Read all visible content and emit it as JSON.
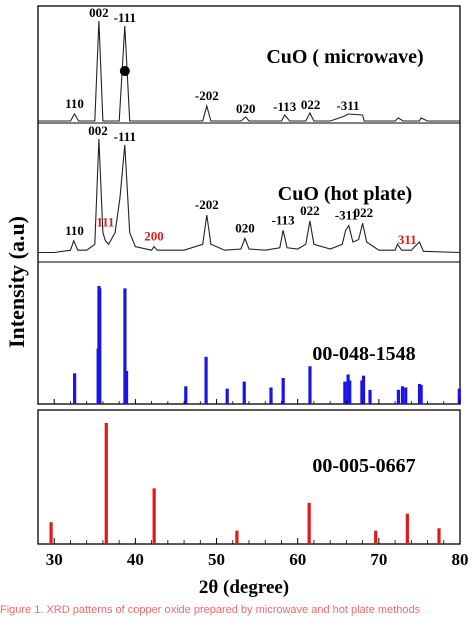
{
  "figure": {
    "ylabel": "Intensity (a.u)",
    "xlabel": "2θ (degree)",
    "caption": "Figure 1. XRD patterns of copper oxide prepared by microwave and hot plate methods"
  },
  "colors": {
    "trace": "#222222",
    "frame": "#000000",
    "blue": "#1a14e6",
    "red": "#e01a1a",
    "red_label": "#e01a1a"
  },
  "chart_data": [
    {
      "type": "line",
      "panel": "CuO microwave",
      "title": "CuO ( microwave)",
      "xlim": [
        28,
        80
      ],
      "x": [
        28,
        30,
        32,
        32.5,
        33,
        34,
        35,
        35.5,
        36,
        37,
        38,
        38.7,
        39.3,
        40,
        44,
        46,
        48.3,
        48.8,
        49.3,
        51,
        53,
        53.6,
        54,
        56,
        58,
        58.4,
        59,
        61,
        61.5,
        62,
        64,
        65.8,
        66.2,
        68,
        68.2,
        69,
        70,
        72,
        72.4,
        73,
        75,
        75.2,
        76,
        80
      ],
      "y": [
        0,
        0,
        0,
        0.07,
        0,
        0,
        0,
        1.0,
        0,
        0,
        0,
        0.95,
        0,
        0,
        0,
        0,
        0,
        0.15,
        0,
        0,
        0,
        0.04,
        0,
        0,
        0,
        0.06,
        0,
        0,
        0.08,
        0,
        0,
        0.05,
        0.07,
        0.06,
        0,
        0,
        0,
        0,
        0.03,
        0,
        0,
        0.03,
        0,
        0
      ],
      "peak_labels": [
        {
          "text": "110",
          "x": 32.5,
          "color": "#000000"
        },
        {
          "text": "002",
          "x": 35.5,
          "color": "#000000"
        },
        {
          "text": "-111",
          "x": 38.7,
          "color": "#000000"
        },
        {
          "text": "-202",
          "x": 48.8,
          "color": "#000000"
        },
        {
          "text": "020",
          "x": 53.6,
          "color": "#000000"
        },
        {
          "text": "-113",
          "x": 58.4,
          "color": "#000000"
        },
        {
          "text": "022",
          "x": 61.6,
          "color": "#000000"
        },
        {
          "text": "-311",
          "x": 66.2,
          "color": "#000000"
        }
      ],
      "marker_x": 38.7
    },
    {
      "type": "line",
      "panel": "CuO hot plate",
      "title": "CuO (hot plate)",
      "xlim": [
        28,
        80
      ],
      "x": [
        28,
        30,
        32,
        32.4,
        32.9,
        34,
        35,
        35.5,
        36,
        36.3,
        36.7,
        37.5,
        38.1,
        38.7,
        39.3,
        40,
        42,
        42.3,
        42.7,
        44,
        46,
        48.3,
        48.8,
        49.3,
        51,
        53,
        53.5,
        54,
        56,
        57.8,
        58.2,
        58.7,
        60,
        61,
        61.5,
        62,
        64,
        65.5,
        65.9,
        66.3,
        66.8,
        67.5,
        68,
        68.5,
        70,
        72,
        72.3,
        72.8,
        74,
        75,
        75.5,
        80
      ],
      "y": [
        0.03,
        0.03,
        0.05,
        0.13,
        0.05,
        0.05,
        0.1,
        1.0,
        0.2,
        0.13,
        0.1,
        0.2,
        0.5,
        0.95,
        0.2,
        0.08,
        0.05,
        0.08,
        0.05,
        0.05,
        0.05,
        0.1,
        0.35,
        0.1,
        0.05,
        0.06,
        0.15,
        0.06,
        0.05,
        0.07,
        0.22,
        0.07,
        0.06,
        0.1,
        0.3,
        0.1,
        0.06,
        0.1,
        0.22,
        0.26,
        0.12,
        0.14,
        0.28,
        0.12,
        0.05,
        0.05,
        0.1,
        0.05,
        0.05,
        0.12,
        0.04,
        0.03
      ],
      "peak_labels": [
        {
          "text": "110",
          "x": 32.5,
          "color": "#000000"
        },
        {
          "text": "111",
          "x": 36.3,
          "color": "#e01a1a"
        },
        {
          "text": "002",
          "x": 35.4,
          "color": "#000000"
        },
        {
          "text": "-111",
          "x": 38.7,
          "color": "#000000"
        },
        {
          "text": "200",
          "x": 42.3,
          "color": "#e01a1a"
        },
        {
          "text": "-202",
          "x": 48.8,
          "color": "#000000"
        },
        {
          "text": "020",
          "x": 53.5,
          "color": "#000000"
        },
        {
          "text": "-113",
          "x": 58.2,
          "color": "#000000"
        },
        {
          "text": "022",
          "x": 61.5,
          "color": "#000000"
        },
        {
          "text": "-311",
          "x": 66,
          "color": "#000000"
        },
        {
          "text": "022",
          "x": 68.1,
          "color": "#000000"
        },
        {
          "text": "311",
          "x": 73.5,
          "color": "#e01a1a"
        }
      ]
    },
    {
      "type": "bar",
      "panel": "Reference 00-048-1548",
      "title": "00-048-1548",
      "xlim": [
        28,
        80
      ],
      "ylim": [
        0,
        100
      ],
      "x": [
        32.5,
        35.4,
        35.5,
        35.6,
        38.7,
        38.9,
        46.2,
        48.7,
        51.3,
        53.4,
        56.7,
        58.2,
        61.5,
        65.8,
        66.2,
        66.4,
        67.9,
        68.1,
        68.9,
        72.4,
        72.9,
        73.3,
        75.0,
        75.2,
        79.9
      ],
      "y": [
        26,
        47,
        100,
        98,
        98,
        28,
        15,
        40,
        13,
        19,
        14,
        22,
        32,
        19,
        25,
        20,
        20,
        24,
        12,
        12,
        15,
        14,
        17,
        16,
        13
      ]
    },
    {
      "type": "bar",
      "panel": "Reference 00-005-0667",
      "title": "00-005-0667",
      "xlim": [
        28,
        80
      ],
      "ylim": [
        0,
        100
      ],
      "x": [
        29.6,
        36.4,
        42.3,
        52.5,
        61.4,
        69.6,
        73.5,
        77.4
      ],
      "y": [
        18,
        100,
        46,
        11,
        34,
        11,
        25,
        13
      ]
    }
  ],
  "axis": {
    "xticks": [
      30,
      40,
      50,
      60,
      70,
      80
    ],
    "xtick_labels": [
      "30",
      "40",
      "50",
      "60",
      "70",
      "80"
    ]
  }
}
